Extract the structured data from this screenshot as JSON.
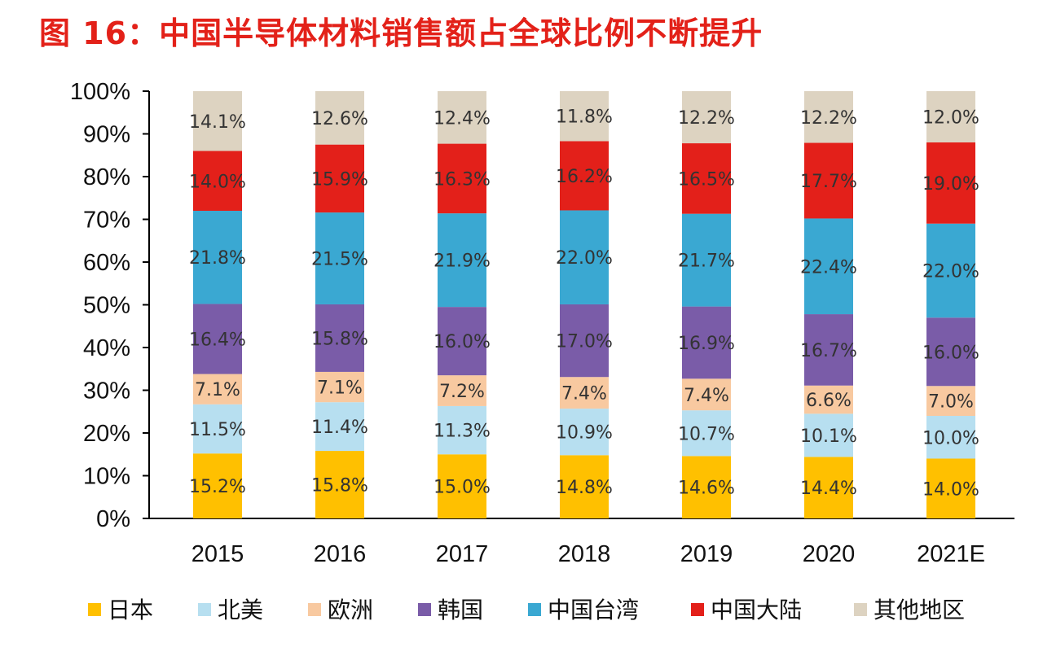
{
  "title": "图 16：中国半导体材料销售额占全球比例不断提升",
  "chart_data": {
    "type": "bar",
    "stacked": true,
    "title": "图 16：中国半导体材料销售额占全球比例不断提升",
    "categories": [
      "2015",
      "2016",
      "2017",
      "2018",
      "2019",
      "2020",
      "2021E"
    ],
    "ylim": [
      0,
      100
    ],
    "yticks": [
      "0%",
      "10%",
      "20%",
      "30%",
      "40%",
      "50%",
      "60%",
      "70%",
      "80%",
      "90%",
      "100%"
    ],
    "grid": false,
    "legend_position": "bottom",
    "series": [
      {
        "name": "日本",
        "color": "#ffc000",
        "values": [
          15.2,
          15.8,
          15.0,
          14.8,
          14.6,
          14.4,
          14.0
        ]
      },
      {
        "name": "北美",
        "color": "#b7dff0",
        "values": [
          11.5,
          11.4,
          11.3,
          10.9,
          10.7,
          10.1,
          10.0
        ]
      },
      {
        "name": "欧洲",
        "color": "#f8c9a0",
        "values": [
          7.1,
          7.1,
          7.2,
          7.4,
          7.4,
          6.6,
          7.0
        ]
      },
      {
        "name": "韩国",
        "color": "#7a5ca8",
        "values": [
          16.4,
          15.8,
          16.0,
          17.0,
          16.9,
          16.7,
          16.0
        ]
      },
      {
        "name": "中国台湾",
        "color": "#3aa8d2",
        "values": [
          21.8,
          21.5,
          21.9,
          22.0,
          21.7,
          22.4,
          22.0
        ]
      },
      {
        "name": "中国大陆",
        "color": "#e3201a",
        "values": [
          14.0,
          15.9,
          16.3,
          16.2,
          16.5,
          17.7,
          19.0
        ]
      },
      {
        "name": "其他地区",
        "color": "#ddd3c1",
        "values": [
          14.1,
          12.6,
          12.4,
          11.8,
          12.2,
          12.2,
          12.0
        ]
      }
    ]
  }
}
